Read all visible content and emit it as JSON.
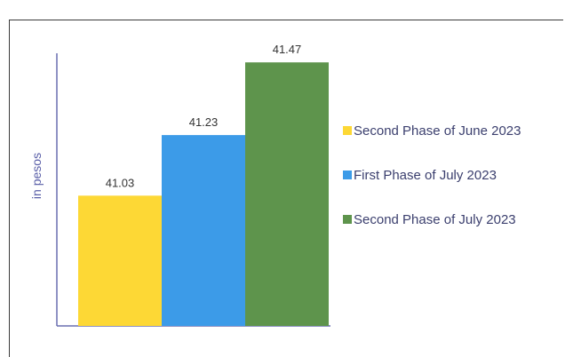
{
  "chart_data": {
    "type": "bar",
    "categories": [
      "Second Phase of June 2023",
      "First Phase of July 2023",
      "Second Phase of July 2023"
    ],
    "values": [
      41.03,
      41.23,
      41.47
    ],
    "value_labels": [
      "41.03",
      "41.23",
      "41.47"
    ],
    "colors": [
      "#fdd835",
      "#3c9be8",
      "#5e944c"
    ],
    "ylabel": "in pesos",
    "xlabel": "",
    "title": "",
    "ylim": [
      40.6,
      41.5
    ],
    "grid": false,
    "legend": {
      "position": "right",
      "entries": [
        "Second Phase of June 2023",
        "First Phase of July 2023",
        "Second Phase of July 2023"
      ]
    }
  }
}
